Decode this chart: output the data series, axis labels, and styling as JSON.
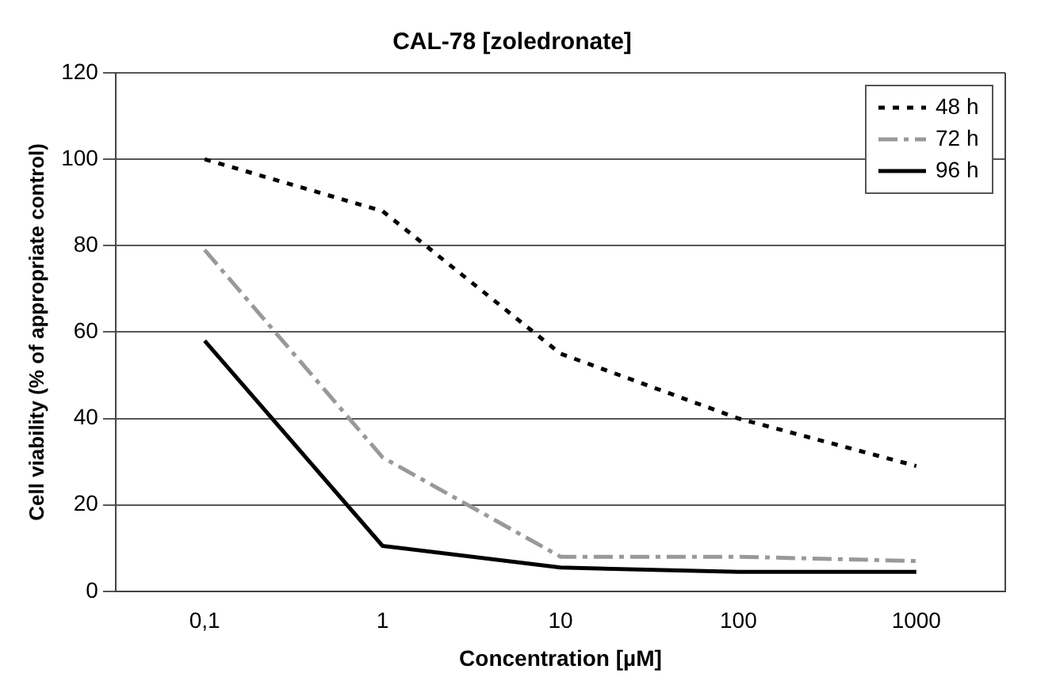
{
  "chart_data": {
    "type": "line",
    "title": "CAL-78 [zoledronate]",
    "xlabel": "Concentration [µM]",
    "ylabel": "Cell viability (% of appropriate control)",
    "categories": [
      "0,1",
      "1",
      "10",
      "100",
      "1000"
    ],
    "series": [
      {
        "name": "48 h",
        "color": "#000000",
        "line_style": "dotted",
        "values": [
          100,
          88,
          55,
          40,
          29
        ]
      },
      {
        "name": "72 h",
        "color": "#999999",
        "line_style": "dashed",
        "values": [
          79,
          31,
          8,
          8,
          7
        ]
      },
      {
        "name": "96 h",
        "color": "#000000",
        "line_style": "solid",
        "values": [
          58,
          10.5,
          5.5,
          4.5,
          4.5
        ]
      }
    ],
    "ylim": [
      0,
      120
    ],
    "yticks": [
      0,
      20,
      40,
      60,
      80,
      100,
      120
    ],
    "grid": "y",
    "legend": "top right",
    "marker": "none"
  }
}
